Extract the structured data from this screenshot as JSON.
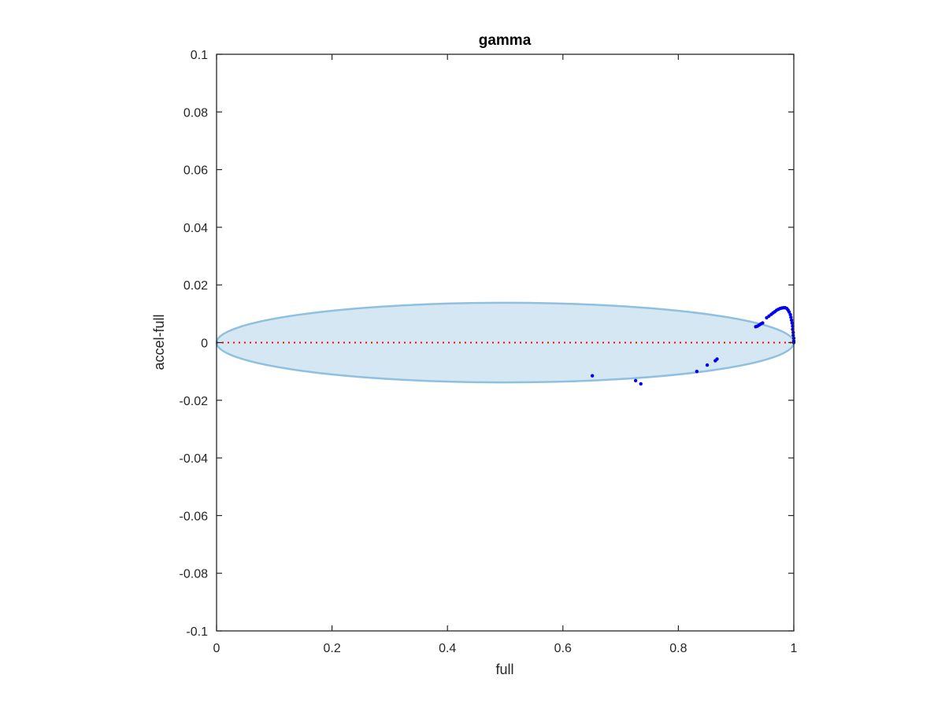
{
  "chart_data": {
    "type": "scatter",
    "title": "gamma",
    "xlabel": "full",
    "ylabel": "accel-full",
    "xlim": [
      0,
      1
    ],
    "ylim": [
      -0.1,
      0.1
    ],
    "xticks": [
      0,
      0.2,
      0.4,
      0.6,
      0.8,
      1
    ],
    "xtick_labels": [
      "0",
      "0.2",
      "0.4",
      "0.6",
      "0.8",
      "1"
    ],
    "yticks": [
      -0.1,
      -0.08,
      -0.06,
      -0.04,
      -0.02,
      0,
      0.02,
      0.04,
      0.06,
      0.08,
      0.1
    ],
    "ytick_labels": [
      "-0.1",
      "-0.08",
      "-0.06",
      "-0.04",
      "-0.02",
      "0",
      "0.02",
      "0.04",
      "0.06",
      "0.08",
      "0.1"
    ],
    "grid": false,
    "box": true,
    "ellipse": {
      "center": [
        0.5,
        0
      ],
      "x_radius": 0.5,
      "y_radius": 0.0138,
      "fill": "#d6e7f4",
      "stroke": "#8fc0e0"
    },
    "reference_line": {
      "y": 0,
      "x_range": [
        0,
        1
      ],
      "color": "#ff0000",
      "style": "dotted"
    },
    "marker_color": "#0000ee",
    "points": [
      [
        0.651,
        -0.0115
      ],
      [
        0.726,
        -0.0132
      ],
      [
        0.735,
        -0.0143
      ],
      [
        0.832,
        -0.01
      ],
      [
        0.85,
        -0.0078
      ],
      [
        0.864,
        -0.0063
      ],
      [
        0.867,
        -0.0057
      ],
      [
        0.934,
        0.0055
      ],
      [
        0.937,
        0.0057
      ],
      [
        0.94,
        0.0061
      ],
      [
        0.943,
        0.0065
      ],
      [
        0.946,
        0.0068
      ],
      [
        0.953,
        0.0086
      ],
      [
        0.957,
        0.0092
      ],
      [
        0.961,
        0.0098
      ],
      [
        0.964,
        0.0103
      ],
      [
        0.967,
        0.0107
      ],
      [
        0.97,
        0.0112
      ],
      [
        0.973,
        0.0115
      ],
      [
        0.976,
        0.0118
      ],
      [
        0.979,
        0.012
      ],
      [
        0.982,
        0.0121
      ],
      [
        0.985,
        0.0121
      ],
      [
        0.988,
        0.0118
      ],
      [
        0.99,
        0.0113
      ],
      [
        0.992,
        0.0106
      ],
      [
        0.994,
        0.0097
      ],
      [
        0.995,
        0.0088
      ],
      [
        0.996,
        0.0078
      ],
      [
        0.997,
        0.0068
      ],
      [
        0.998,
        0.0057
      ],
      [
        0.998,
        0.0046
      ],
      [
        0.999,
        0.0035
      ],
      [
        0.999,
        0.0025
      ],
      [
        1.0,
        0.0015
      ],
      [
        1.0,
        0.0005
      ],
      [
        1.0,
        0.0
      ]
    ]
  }
}
